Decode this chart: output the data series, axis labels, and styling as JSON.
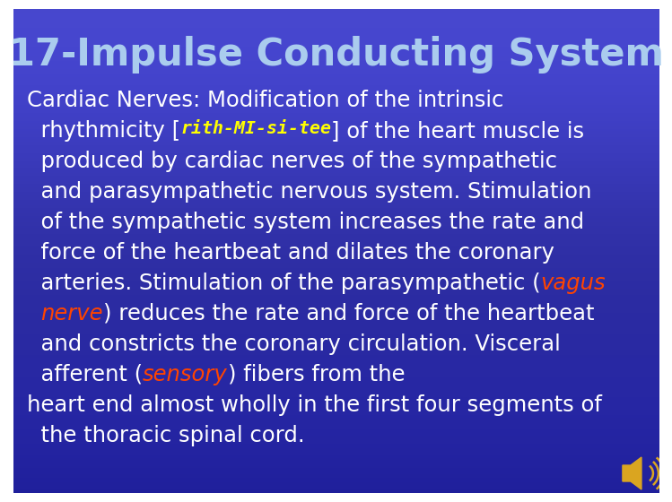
{
  "title": "17-Impulse Conducting System",
  "title_color": "#aaccee",
  "title_fontsize": 30,
  "body_fontsize": 17.5,
  "lines": [
    [
      {
        "t": "Cardiac Nerves: Modification of the intrinsic",
        "c": "#ffffff",
        "s": "normal",
        "w": "normal"
      }
    ],
    [
      {
        "t": "  rhythmicity [",
        "c": "#ffffff",
        "s": "normal",
        "w": "normal"
      },
      {
        "t": "rith-MI-si-tee",
        "c": "#ffff00",
        "s": "italic",
        "w": "bold"
      },
      {
        "t": "] of the heart muscle is",
        "c": "#ffffff",
        "s": "normal",
        "w": "normal"
      }
    ],
    [
      {
        "t": "  produced by cardiac nerves of the sympathetic",
        "c": "#ffffff",
        "s": "normal",
        "w": "normal"
      }
    ],
    [
      {
        "t": "  and parasympathetic nervous system. Stimulation",
        "c": "#ffffff",
        "s": "normal",
        "w": "normal"
      }
    ],
    [
      {
        "t": "  of the sympathetic system increases the rate and",
        "c": "#ffffff",
        "s": "normal",
        "w": "normal"
      }
    ],
    [
      {
        "t": "  force of the heartbeat and dilates the coronary",
        "c": "#ffffff",
        "s": "normal",
        "w": "normal"
      }
    ],
    [
      {
        "t": "  arteries. Stimulation of the parasympathetic (",
        "c": "#ffffff",
        "s": "normal",
        "w": "normal"
      },
      {
        "t": "vagus",
        "c": "#ff4400",
        "s": "italic",
        "w": "normal"
      }
    ],
    [
      {
        "t": "  ",
        "c": "#ffffff",
        "s": "normal",
        "w": "normal"
      },
      {
        "t": "nerve",
        "c": "#ff4400",
        "s": "italic",
        "w": "normal"
      },
      {
        "t": ") reduces the rate and force of the heartbeat",
        "c": "#ffffff",
        "s": "normal",
        "w": "normal"
      }
    ],
    [
      {
        "t": "  and constricts the coronary circulation. Visceral",
        "c": "#ffffff",
        "s": "normal",
        "w": "normal"
      }
    ],
    [
      {
        "t": "  afferent (",
        "c": "#ffffff",
        "s": "normal",
        "w": "normal"
      },
      {
        "t": "sensory",
        "c": "#ff4400",
        "s": "italic",
        "w": "normal"
      },
      {
        "t": ") fibers from the",
        "c": "#ffffff",
        "s": "normal",
        "w": "normal"
      }
    ],
    [
      {
        "t": "heart end almost wholly in the first four segments of",
        "c": "#ffffff",
        "s": "normal",
        "w": "normal"
      }
    ],
    [
      {
        "t": "  the thoracic spinal cord.",
        "c": "#ffffff",
        "s": "normal",
        "w": "normal"
      }
    ]
  ],
  "speaker_color": "#DAA520"
}
